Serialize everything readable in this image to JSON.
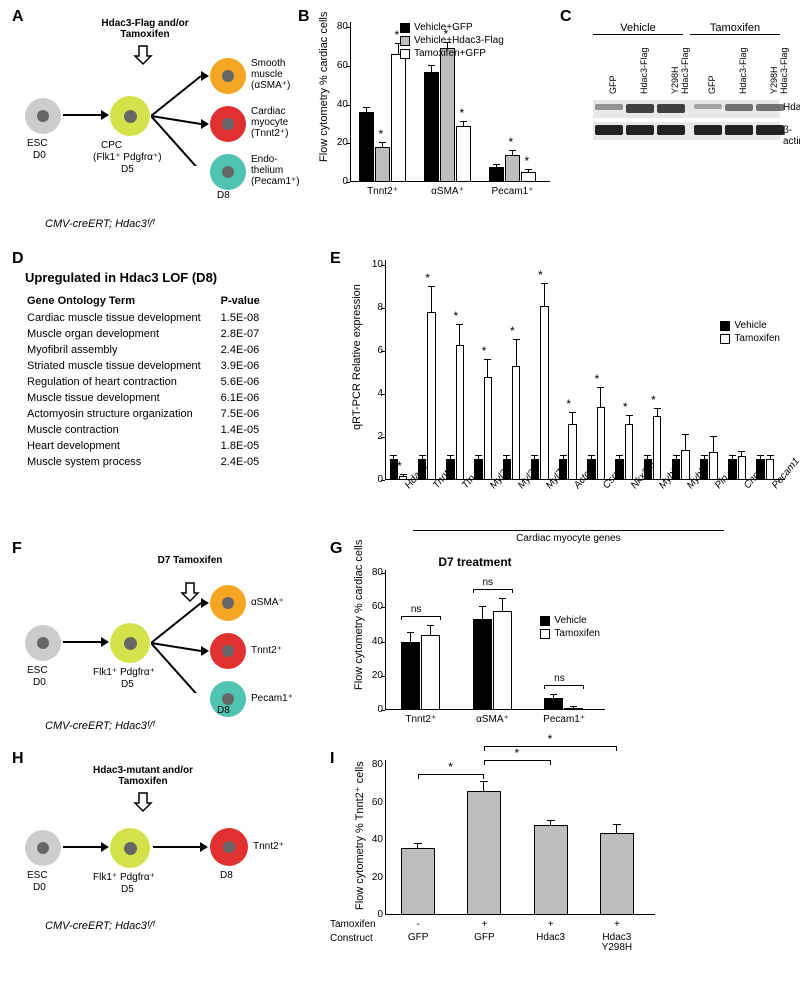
{
  "labels": {
    "A": "A",
    "B": "B",
    "C": "C",
    "D": "D",
    "E": "E",
    "F": "F",
    "G": "G",
    "H": "H",
    "I": "I"
  },
  "colors": {
    "esc": "#cccccc",
    "cpc": "#d4e24a",
    "smooth": "#f5a623",
    "cardiac": "#e03030",
    "endo": "#4fc4b0",
    "nucleus": "#666666",
    "black": "#000000",
    "white": "#ffffff",
    "grey": "#bdbdbd"
  },
  "panelA": {
    "treatment": "Hdac3-Flag and/or\nTamoxifen",
    "esc": {
      "label": "ESC",
      "day": "D0"
    },
    "cpc": {
      "label": "CPC",
      "markers": "(Flk1⁺ Pdgfrα⁺)",
      "day": "D5"
    },
    "lineages": [
      {
        "name": "Smooth\nmuscle",
        "markers": "(αSMA⁺)",
        "color": "#f5a623"
      },
      {
        "name": "Cardiac\nmyocyte",
        "markers": "(Tnnt2⁺)",
        "color": "#e03030"
      },
      {
        "name": "Endo-\nthelium",
        "markers": "(Pecam1⁺)",
        "color": "#4fc4b0"
      }
    ],
    "day_end": "D8",
    "genotype": "CMV-creERT; Hdac3ᶠ/ᶠ"
  },
  "panelB": {
    "ylabel": "Flow cytometry\n% cardiac cells",
    "ylim": [
      0,
      80
    ],
    "ytick_step": 20,
    "categories": [
      "Tnnt2⁺",
      "αSMA⁺",
      "Pecam1⁺"
    ],
    "series": [
      {
        "name": "Vehicle+GFP",
        "color": "#000000",
        "values": [
          36,
          57,
          8
        ],
        "err": [
          2,
          3,
          1
        ],
        "sig": [
          false,
          false,
          false
        ]
      },
      {
        "name": "Vehicle+Hdac3-Flag",
        "color": "#bdbdbd",
        "values": [
          18,
          69,
          14
        ],
        "err": [
          2,
          3,
          2
        ],
        "sig": [
          true,
          true,
          true
        ]
      },
      {
        "name": "Tamoxifen+GFP",
        "color": "#ffffff",
        "values": [
          66,
          29,
          5
        ],
        "err": [
          5,
          2,
          1
        ],
        "sig": [
          true,
          true,
          true
        ]
      }
    ]
  },
  "panelC": {
    "groups": [
      "Vehicle",
      "Tamoxifen"
    ],
    "lanes": [
      "GFP",
      "Hdac3-Flag",
      "Y298H\nHdac3-Flag",
      "GFP",
      "Hdac3-Flag",
      "Y298H\nHdac3-Flag"
    ],
    "rows": [
      "Hdac3",
      "β-actin"
    ]
  },
  "panelD": {
    "title": "Upregulated in Hdac3 LOF (D8)",
    "columns": [
      "Gene Ontology Term",
      "P-value"
    ],
    "rows": [
      [
        "Cardiac muscle tissue development",
        "1.5E-08"
      ],
      [
        "Muscle organ development",
        "2.8E-07"
      ],
      [
        "Myofibril assembly",
        "2.4E-06"
      ],
      [
        "Striated muscle tissue development",
        "3.9E-06"
      ],
      [
        "Regulation of heart contraction",
        "5.6E-06"
      ],
      [
        "Muscle tissue development",
        "6.1E-06"
      ],
      [
        "Actomyosin structure organization",
        "7.5E-06"
      ],
      [
        "Muscle contraction",
        "1.4E-05"
      ],
      [
        "Heart development",
        "1.8E-05"
      ],
      [
        "Muscle system process",
        "2.4E-05"
      ]
    ]
  },
  "panelE": {
    "ylabel": "qRT-PCR\nRelative expression",
    "ylim": [
      0,
      10
    ],
    "ytick_step": 2,
    "genes": [
      "Hdac3",
      "Tnnt2",
      "Ttn",
      "Myl2",
      "Myl3",
      "Myl7",
      "Actc1",
      "Csrp3",
      "Nkx2-5",
      "Myh6",
      "Myh7",
      "Pln",
      "Cnn1",
      "Pecam1"
    ],
    "series": [
      {
        "name": "Vehicle",
        "color": "#000000",
        "values": [
          1,
          1,
          1,
          1,
          1,
          1,
          1,
          1,
          1,
          1,
          1,
          1,
          1,
          1
        ],
        "err": [
          0.1,
          0.1,
          0.1,
          0.1,
          0.1,
          0.1,
          0.1,
          0.1,
          0.1,
          0.1,
          0.1,
          0.1,
          0.1,
          0.1
        ]
      },
      {
        "name": "Tamoxifen",
        "color": "#ffffff",
        "values": [
          0.2,
          7.8,
          6.3,
          4.8,
          5.3,
          8.1,
          2.6,
          3.4,
          2.6,
          3.0,
          1.4,
          1.3,
          1.1,
          1.0
        ],
        "err": [
          0.05,
          1.2,
          0.9,
          0.8,
          1.2,
          1.0,
          0.5,
          0.9,
          0.4,
          0.3,
          0.7,
          0.7,
          0.2,
          0.1
        ]
      }
    ],
    "sig": [
      true,
      true,
      true,
      true,
      true,
      true,
      true,
      true,
      true,
      true,
      false,
      false,
      false,
      false
    ],
    "group_label": "Cardiac myocyte genes"
  },
  "panelF": {
    "treatment": "D7\nTamoxifen",
    "esc": {
      "label": "ESC",
      "day": "D0"
    },
    "cpc": {
      "markers": "Flk1⁺ Pdgfrα⁺",
      "day": "D5"
    },
    "lineages": [
      {
        "markers": "αSMA⁺",
        "color": "#f5a623"
      },
      {
        "markers": "Tnnt2⁺",
        "color": "#e03030"
      },
      {
        "markers": "Pecam1⁺",
        "color": "#4fc4b0"
      }
    ],
    "day_end": "D8",
    "genotype": "CMV-creERT; Hdac3ᶠ/ᶠ"
  },
  "panelG": {
    "title": "D7 treatment",
    "ylabel": "Flow cytometry\n% cardiac cells",
    "ylim": [
      0,
      80
    ],
    "ytick_step": 20,
    "categories": [
      "Tnnt2⁺",
      "αSMA⁺",
      "Pecam1⁺"
    ],
    "series": [
      {
        "name": "Vehicle",
        "color": "#000000",
        "values": [
          40,
          53,
          7
        ],
        "err": [
          5,
          7,
          2
        ]
      },
      {
        "name": "Tamoxifen",
        "color": "#ffffff",
        "values": [
          44,
          58,
          1
        ],
        "err": [
          5,
          7,
          1
        ]
      }
    ],
    "ns": "ns"
  },
  "panelH": {
    "treatment": "Hdac3-mutant and/or\nTamoxifen",
    "esc": {
      "label": "ESC",
      "day": "D0"
    },
    "cpc": {
      "markers": "Flk1⁺ Pdgfrα⁺",
      "day": "D5"
    },
    "lineage": {
      "markers": "Tnnt2⁺",
      "color": "#e03030"
    },
    "day_end": "D8",
    "genotype": "CMV-creERT; Hdac3ᶠ/ᶠ"
  },
  "panelI": {
    "ylabel": "Flow cytometry\n% Tnnt2⁺ cells",
    "ylim": [
      0,
      80
    ],
    "ytick_step": 20,
    "row1_label": "Tamoxifen",
    "row2_label": "Construct",
    "conditions": [
      {
        "tam": "-",
        "construct": "GFP",
        "value": 36,
        "err": 2
      },
      {
        "tam": "+",
        "construct": "GFP",
        "value": 66,
        "err": 5
      },
      {
        "tam": "+",
        "construct": "Hdac3",
        "value": 48,
        "err": 2
      },
      {
        "tam": "+",
        "construct": "Hdac3\nY298H",
        "value": 44,
        "err": 4
      }
    ],
    "bar_color": "#bdbdbd",
    "comparisons": [
      [
        0,
        1
      ],
      [
        1,
        2
      ],
      [
        1,
        3
      ]
    ]
  }
}
